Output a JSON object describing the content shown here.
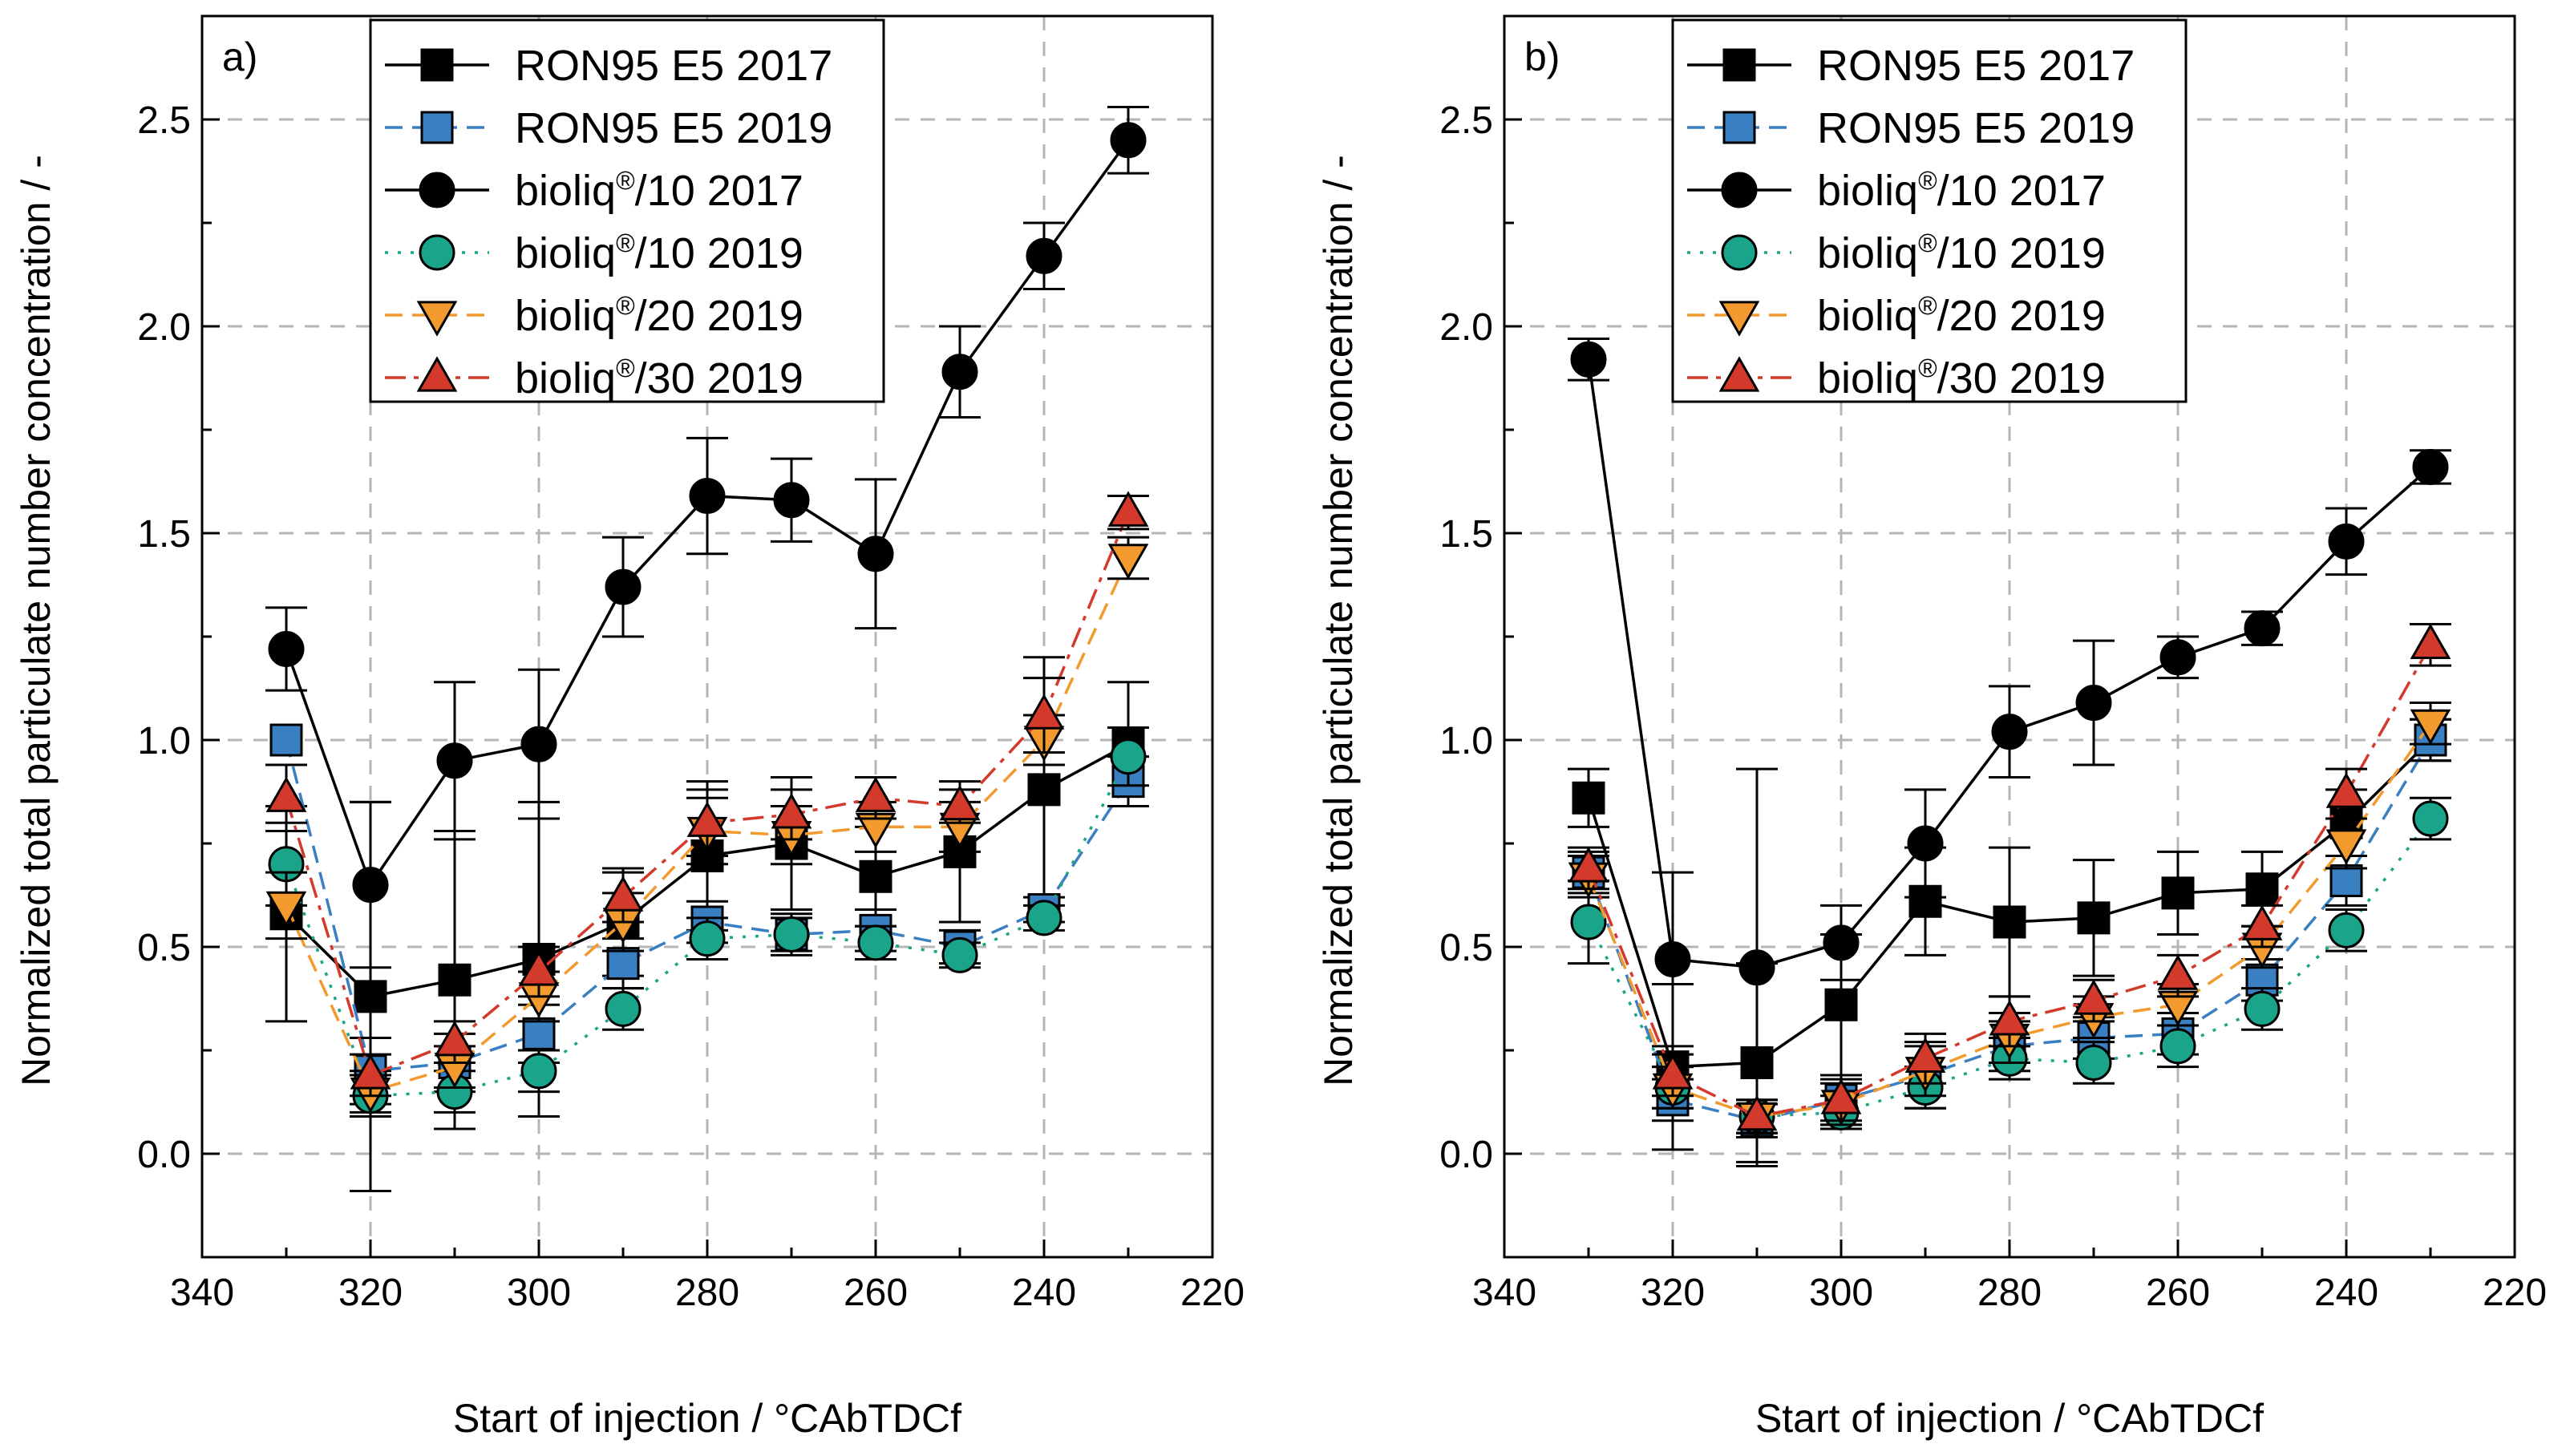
{
  "chart_data": [
    {
      "type": "line",
      "panel_label": "a)",
      "xlabel": "Start of injection / °CAbTDCf",
      "ylabel": "Normalized total particulate number concentration / -",
      "xlim": [
        340,
        220
      ],
      "ylim": [
        -0.25,
        2.75
      ],
      "x_ticks": [
        "340",
        "320",
        "300",
        "280",
        "260",
        "240",
        "220"
      ],
      "y_ticks": [
        "0.0",
        "0.5",
        "1.0",
        "1.5",
        "2.0",
        "2.5"
      ],
      "grid": true,
      "legend_position": "top-left",
      "x": [
        330,
        320,
        310,
        300,
        290,
        280,
        270,
        260,
        250,
        240,
        230
      ],
      "series": [
        {
          "name": "RON95 E5 2017",
          "legend_text": [
            "RON95 E5 2017"
          ],
          "color": "#000000",
          "dash": "solid",
          "marker": "square",
          "values": [
            0.58,
            0.38,
            0.42,
            0.47,
            0.56,
            0.72,
            0.75,
            0.67,
            0.73,
            0.88,
            0.99
          ],
          "errors": [
            0.26,
            0.47,
            0.36,
            0.38,
            0.13,
            0.18,
            0.16,
            0.12,
            0.17,
            0.32,
            0.15
          ]
        },
        {
          "name": "RON95 E5 2019",
          "legend_text": [
            "RON95 E5 2019"
          ],
          "color": "#3a7fc1",
          "dash": "dash",
          "marker": "square",
          "values": [
            1.0,
            0.2,
            0.22,
            0.29,
            0.46,
            0.56,
            0.53,
            0.54,
            0.5,
            0.59,
            0.9
          ],
          "errors": [
            0.0,
            0.08,
            0.07,
            0.07,
            0.06,
            0.05,
            0.05,
            0.05,
            0.04,
            0.03,
            0.06
          ]
        },
        {
          "name": "bioliq®/10 2017",
          "legend_text": [
            "bioliq",
            "®",
            "/10 2017"
          ],
          "color": "#000000",
          "dash": "solid",
          "marker": "circle",
          "values": [
            1.22,
            0.65,
            0.95,
            0.99,
            1.37,
            1.59,
            1.58,
            1.45,
            1.89,
            2.17,
            2.45
          ],
          "errors": [
            0.1,
            0.2,
            0.19,
            0.18,
            0.12,
            0.14,
            0.1,
            0.18,
            0.11,
            0.08,
            0.08
          ]
        },
        {
          "name": "bioliq®/10 2019",
          "legend_text": [
            "bioliq",
            "®",
            "/10 2019"
          ],
          "color": "#1aa58b",
          "dash": "dot",
          "marker": "circle",
          "values": [
            0.7,
            0.14,
            0.15,
            0.2,
            0.35,
            0.52,
            0.53,
            0.51,
            0.48,
            0.57,
            0.96
          ],
          "errors": [
            0.1,
            0.05,
            0.05,
            0.05,
            0.05,
            0.05,
            0.04,
            0.04,
            0.03,
            0.03,
            0.07
          ]
        },
        {
          "name": "bioliq®/20 2019",
          "legend_text": [
            "bioliq",
            "®",
            "/20 2019"
          ],
          "color": "#f29a2e",
          "dash": "dash",
          "marker": "triangle-down",
          "values": [
            0.6,
            0.15,
            0.21,
            0.38,
            0.56,
            0.78,
            0.77,
            0.79,
            0.79,
            1.0,
            1.44
          ],
          "errors": [
            0.08,
            0.05,
            0.05,
            0.06,
            0.07,
            0.08,
            0.07,
            0.06,
            0.06,
            0.06,
            0.05
          ]
        },
        {
          "name": "bioliq®/30 2019",
          "legend_text": [
            "bioliq",
            "®",
            "/30 2019"
          ],
          "color": "#d43a2c",
          "dash": "dashdot",
          "marker": "triangle-up",
          "values": [
            0.86,
            0.19,
            0.27,
            0.44,
            0.62,
            0.8,
            0.82,
            0.86,
            0.84,
            1.06,
            1.55
          ],
          "errors": [
            0.08,
            0.05,
            0.05,
            0.06,
            0.06,
            0.08,
            0.06,
            0.05,
            0.04,
            0.09,
            0.04
          ]
        }
      ]
    },
    {
      "type": "line",
      "panel_label": "b)",
      "xlabel": "Start of injection / °CAbTDCf",
      "ylabel": "Normalized total particulate number concentration / -",
      "xlim": [
        340,
        220
      ],
      "ylim": [
        -0.25,
        2.75
      ],
      "x_ticks": [
        "340",
        "320",
        "300",
        "280",
        "260",
        "240",
        "220"
      ],
      "y_ticks": [
        "0.0",
        "0.5",
        "1.0",
        "1.5",
        "2.0",
        "2.5"
      ],
      "grid": true,
      "legend_position": "top-left",
      "x": [
        330,
        320,
        310,
        300,
        290,
        280,
        270,
        260,
        250,
        240,
        230
      ],
      "series": [
        {
          "name": "RON95 E5 2017",
          "legend_text": [
            "RON95 E5 2017"
          ],
          "color": "#000000",
          "dash": "solid",
          "marker": "square",
          "values": [
            0.86,
            0.21,
            0.22,
            0.36,
            0.61,
            0.56,
            0.57,
            0.63,
            0.64,
            0.8,
            1.0
          ],
          "errors": [
            0.07,
            0.2,
            0.24,
            0.17,
            0.13,
            0.18,
            0.14,
            0.1,
            0.09,
            0.08,
            0.05
          ]
        },
        {
          "name": "RON95 E5 2019",
          "legend_text": [
            "RON95 E5 2019"
          ],
          "color": "#3a7fc1",
          "dash": "dash",
          "marker": "square",
          "values": [
            0.68,
            0.13,
            0.08,
            0.13,
            0.19,
            0.26,
            0.28,
            0.29,
            0.42,
            0.66,
            1.0
          ],
          "errors": [
            0.05,
            0.05,
            0.04,
            0.06,
            0.08,
            0.06,
            0.05,
            0.05,
            0.05,
            0.06,
            0.05
          ]
        },
        {
          "name": "bioliq®/10 2017",
          "legend_text": [
            "bioliq",
            "®",
            "/10 2017"
          ],
          "color": "#000000",
          "dash": "solid",
          "marker": "circle",
          "values": [
            1.92,
            0.47,
            0.45,
            0.51,
            0.75,
            1.02,
            1.09,
            1.2,
            1.27,
            1.48,
            1.66
          ],
          "errors": [
            0.05,
            0.21,
            0.48,
            0.09,
            0.13,
            0.11,
            0.15,
            0.05,
            0.04,
            0.08,
            0.04
          ]
        },
        {
          "name": "bioliq®/10 2019",
          "legend_text": [
            "bioliq",
            "®",
            "/10 2019"
          ],
          "color": "#1aa58b",
          "dash": "dot",
          "marker": "circle",
          "values": [
            0.56,
            0.16,
            0.09,
            0.1,
            0.16,
            0.23,
            0.22,
            0.26,
            0.35,
            0.54,
            0.81
          ],
          "errors": [
            0.1,
            0.05,
            0.04,
            0.04,
            0.05,
            0.05,
            0.05,
            0.05,
            0.05,
            0.05,
            0.05
          ]
        },
        {
          "name": "bioliq®/20 2019",
          "legend_text": [
            "bioliq",
            "®",
            "/20 2019"
          ],
          "color": "#f29a2e",
          "dash": "dash",
          "marker": "triangle-down",
          "values": [
            0.67,
            0.16,
            0.09,
            0.12,
            0.2,
            0.28,
            0.33,
            0.36,
            0.5,
            0.75,
            1.04
          ],
          "errors": [
            0.05,
            0.05,
            0.04,
            0.05,
            0.06,
            0.06,
            0.05,
            0.05,
            0.05,
            0.06,
            0.05
          ]
        },
        {
          "name": "bioliq®/30 2019",
          "legend_text": [
            "bioliq",
            "®",
            "/30 2019"
          ],
          "color": "#d43a2c",
          "dash": "dashdot",
          "marker": "triangle-up",
          "values": [
            0.69,
            0.19,
            0.09,
            0.13,
            0.23,
            0.32,
            0.37,
            0.43,
            0.55,
            0.87,
            1.23
          ],
          "errors": [
            0.05,
            0.05,
            0.04,
            0.05,
            0.06,
            0.06,
            0.05,
            0.05,
            0.05,
            0.06,
            0.05
          ]
        }
      ]
    }
  ]
}
